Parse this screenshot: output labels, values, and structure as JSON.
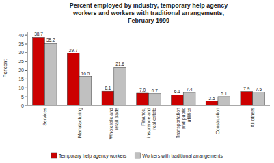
{
  "chart_data": {
    "type": "bar",
    "title": "Percent employed by industry, temporary help agency\nworkers and workers with traditional arrangements,\nFebruary 1999",
    "categories": [
      "Services",
      "Manufacturing",
      "Wholesale and\nretail trade",
      "Finance,\ninsurance and\nreal estate",
      "Transportation\nand public\nutilities",
      "Construction",
      "All others"
    ],
    "series": [
      {
        "name": "Temporary help agency workers",
        "color": "#cc0000",
        "values": [
          38.7,
          29.7,
          8.1,
          7.0,
          6.1,
          2.5,
          7.9
        ],
        "value_labels": [
          "38.7",
          "29.7",
          "8.1",
          "7.0",
          "6.1",
          "2.5",
          "7.9"
        ]
      },
      {
        "name": "Workers with traditional arrangements",
        "color": "#c0c0c0",
        "values": [
          35.2,
          16.5,
          21.6,
          6.7,
          7.4,
          5.1,
          7.5
        ],
        "value_labels": [
          "35.2",
          "16.5",
          "21.6",
          "6.7",
          "7.4",
          "5.1",
          "7.5"
        ]
      }
    ],
    "ylabel": "Percent",
    "ylim": [
      0,
      42
    ],
    "yticks": [
      0,
      5,
      10,
      15,
      20,
      25,
      30,
      35,
      40
    ],
    "data_labels": true,
    "grid": false,
    "legend": "bottom"
  }
}
